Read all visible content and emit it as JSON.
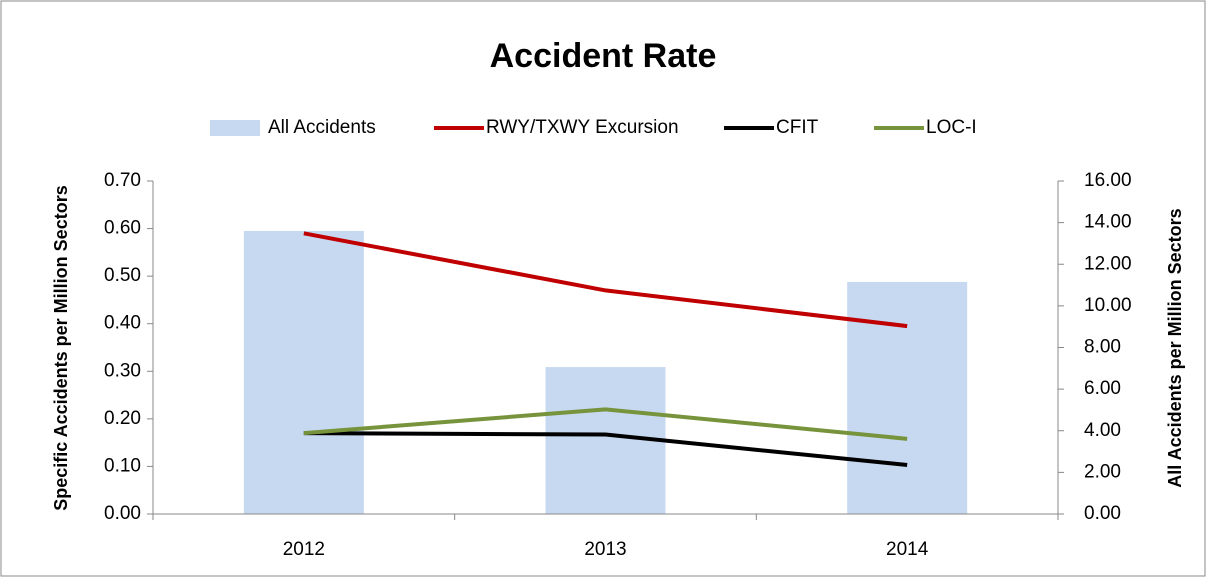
{
  "chart_data": {
    "type": "bar_line",
    "title": "Accident Rate",
    "y_label": "Specific Accidents per Million Sectors",
    "y2_label": "All Accidents per Million Sectors",
    "categories": [
      "2012",
      "2013",
      "2014"
    ],
    "series": [
      {
        "name": "All Accidents",
        "type": "bar",
        "axis": "y2",
        "color": "#c6d9f1",
        "values": [
          13.6,
          7.06,
          11.15
        ]
      },
      {
        "name": "RWY/TXWY Excursion",
        "type": "line",
        "color": "#c00000",
        "values": [
          0.59,
          0.47,
          0.395
        ]
      },
      {
        "name": "CFIT",
        "type": "line",
        "color": "#000000",
        "values": [
          0.17,
          0.167,
          0.103
        ]
      },
      {
        "name": "LOC-I",
        "type": "line",
        "color": "#77933c",
        "values": [
          0.17,
          0.22,
          0.158
        ]
      }
    ],
    "ylim": [
      0,
      0.7
    ],
    "yticks": [
      {
        "value": 0,
        "label": "0.00"
      },
      {
        "value": 0.1,
        "label": "0.10"
      },
      {
        "value": 0.2,
        "label": "0.20"
      },
      {
        "value": 0.3,
        "label": "0.30"
      },
      {
        "value": 0.4,
        "label": "0.40"
      },
      {
        "value": 0.5,
        "label": "0.50"
      },
      {
        "value": 0.6,
        "label": "0.60"
      },
      {
        "value": 0.7,
        "label": "0.70"
      }
    ],
    "y2lim": [
      0,
      16
    ],
    "y2ticks": [
      {
        "value": 0,
        "label": "0.00"
      },
      {
        "value": 2,
        "label": "2.00"
      },
      {
        "value": 4,
        "label": "4.00"
      },
      {
        "value": 6,
        "label": "6.00"
      },
      {
        "value": 8,
        "label": "8.00"
      },
      {
        "value": 10,
        "label": "10.00"
      },
      {
        "value": 12,
        "label": "12.00"
      },
      {
        "value": 14,
        "label": "14.00"
      },
      {
        "value": 16,
        "label": "16.00"
      }
    ],
    "grid": false,
    "legend": "top"
  }
}
